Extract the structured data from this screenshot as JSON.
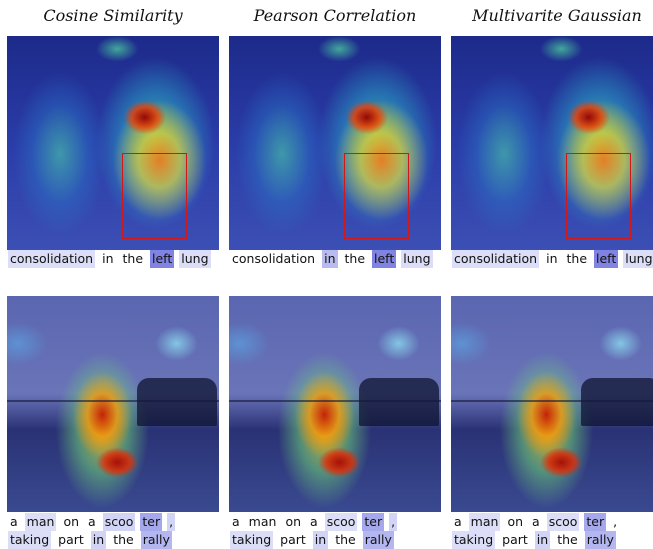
{
  "columns": [
    {
      "title": "Cosine Similarity",
      "captions": [
        [
          {
            "text": "consolidation",
            "highlight": "#dcdef7"
          },
          {
            "text": "in"
          },
          {
            "text": "the"
          },
          {
            "text": "left",
            "highlight": "#8083e2"
          },
          {
            "text": "lung",
            "highlight": "#dcdef7"
          }
        ],
        [
          {
            "text": "a"
          },
          {
            "text": "man",
            "highlight": "#dcdef7"
          },
          {
            "text": "on"
          },
          {
            "text": "a"
          },
          {
            "text": "scoo",
            "highlight": "#d2d4f5"
          },
          {
            "text": "ter",
            "highlight": "#a6a8ec"
          },
          {
            "text": ",",
            "highlight": "#d2d4f5"
          },
          {
            "text": "taking",
            "highlight": "#dcdef7"
          },
          {
            "text": "part"
          },
          {
            "text": "in",
            "highlight": "#d2d4f5"
          },
          {
            "text": "the"
          },
          {
            "text": "rally",
            "highlight": "#b4b6ef"
          }
        ]
      ]
    },
    {
      "title": "Pearson Correlation",
      "captions": [
        [
          {
            "text": "consolidation"
          },
          {
            "text": "in",
            "highlight": "#b9bbef"
          },
          {
            "text": "the"
          },
          {
            "text": "left",
            "highlight": "#8083e2"
          },
          {
            "text": "lung",
            "highlight": "#dcdef7"
          }
        ],
        [
          {
            "text": "a"
          },
          {
            "text": "man"
          },
          {
            "text": "on"
          },
          {
            "text": "a"
          },
          {
            "text": "scoo",
            "highlight": "#dcdef7"
          },
          {
            "text": "ter",
            "highlight": "#a6a8ec"
          },
          {
            "text": ",",
            "highlight": "#d2d4f5"
          },
          {
            "text": "taking",
            "highlight": "#dcdef7"
          },
          {
            "text": "part"
          },
          {
            "text": "in",
            "highlight": "#d2d4f5"
          },
          {
            "text": "the"
          },
          {
            "text": "rally",
            "highlight": "#b4b6ef"
          }
        ]
      ]
    },
    {
      "title": "Multivarite Gaussian",
      "captions": [
        [
          {
            "text": "consolidation",
            "highlight": "#dcdef7"
          },
          {
            "text": "in"
          },
          {
            "text": "the"
          },
          {
            "text": "left",
            "highlight": "#8083e2"
          },
          {
            "text": "lung",
            "highlight": "#dcdef7"
          }
        ],
        [
          {
            "text": "a"
          },
          {
            "text": "man",
            "highlight": "#dcdef7"
          },
          {
            "text": "on"
          },
          {
            "text": "a"
          },
          {
            "text": "scoo",
            "highlight": "#dcdef7"
          },
          {
            "text": "ter",
            "highlight": "#a6a8ec"
          },
          {
            "text": ","
          },
          {
            "text": "taking",
            "highlight": "#dcdef7"
          },
          {
            "text": "part"
          },
          {
            "text": "in",
            "highlight": "#d2d4f5"
          },
          {
            "text": "the"
          },
          {
            "text": "rally",
            "highlight": "#b4b6ef"
          }
        ]
      ]
    }
  ]
}
